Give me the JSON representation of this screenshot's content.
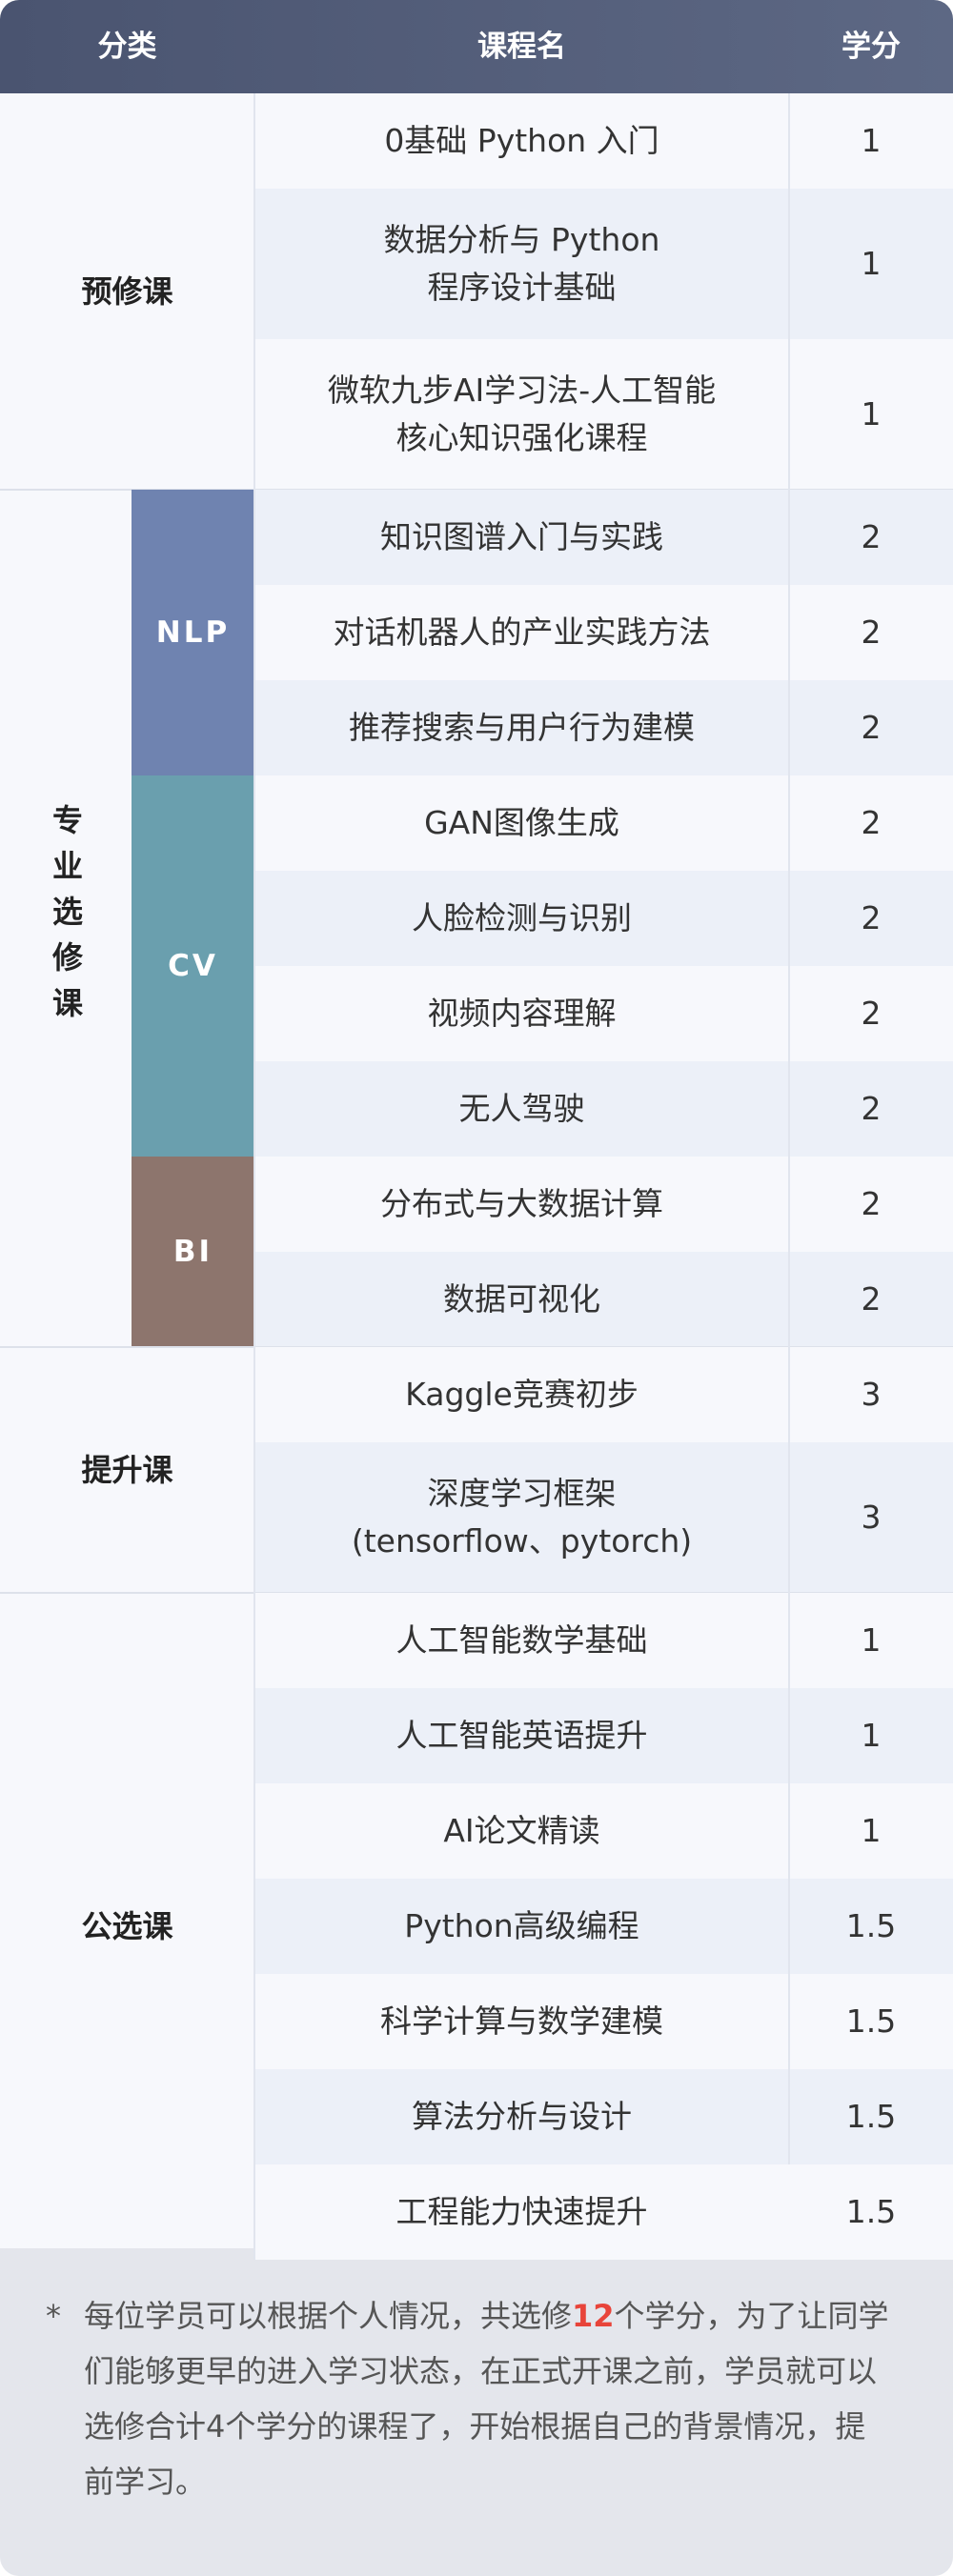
{
  "header": [
    "分类",
    "课程名",
    "学分"
  ],
  "groups": [
    {
      "name": "预修课",
      "courses": [
        {
          "name": "0基础 Python 入门",
          "credit": 1
        },
        {
          "name": "数据分析与 Python\n程序设计基础",
          "credit": 1
        },
        {
          "name": "微软九步AI学习法-人工智能\n核心知识强化课程",
          "credit": 1
        }
      ]
    },
    {
      "name": "专业选修课",
      "subgroups": [
        {
          "name": "NLP",
          "courses": [
            {
              "name": "知识图谱入门与实践",
              "credit": 2
            },
            {
              "name": "对话机器人的产业实践方法",
              "credit": 2
            },
            {
              "name": "推荐搜索与用户行为建模",
              "credit": 2
            }
          ]
        },
        {
          "name": "CV",
          "courses": [
            {
              "name": "GAN图像生成",
              "credit": 2
            },
            {
              "name": "人脸检测与识别",
              "credit": 2
            },
            {
              "name": "视频内容理解",
              "credit": 2
            },
            {
              "name": "无人驾驶",
              "credit": 2
            }
          ]
        },
        {
          "name": "BI",
          "courses": [
            {
              "name": "分布式与大数据计算",
              "credit": 2
            },
            {
              "name": "数据可视化",
              "credit": 2
            }
          ]
        }
      ]
    },
    {
      "name": "提升课",
      "courses": [
        {
          "name": "Kaggle竞赛初步",
          "credit": 3
        },
        {
          "name": "深度学习框架\n(tensorflow、pytorch)",
          "credit": 3
        }
      ]
    },
    {
      "name": "公选课",
      "courses": [
        {
          "name": "人工智能数学基础",
          "credit": 1
        },
        {
          "name": "人工智能英语提升",
          "credit": 1
        },
        {
          "name": "AI论文精读",
          "credit": 1
        },
        {
          "name": "Python高级编程",
          "credit": 1.5
        },
        {
          "name": "科学计算与数学建模",
          "credit": 1.5
        },
        {
          "name": "算法分析与设计",
          "credit": 1.5
        },
        {
          "name": "工程能力快速提升",
          "credit": 1.5
        }
      ]
    }
  ],
  "note": {
    "marker": "*",
    "prefix": "每位学员可以根据个人情况，共选修",
    "highlight": "12",
    "suffix": "个学分，为了让同学们能够更早的进入学习状态，在正式开课之前，学员就可以选修合计4个学分的课程了，开始根据自己的背景情况，提前学习。"
  }
}
